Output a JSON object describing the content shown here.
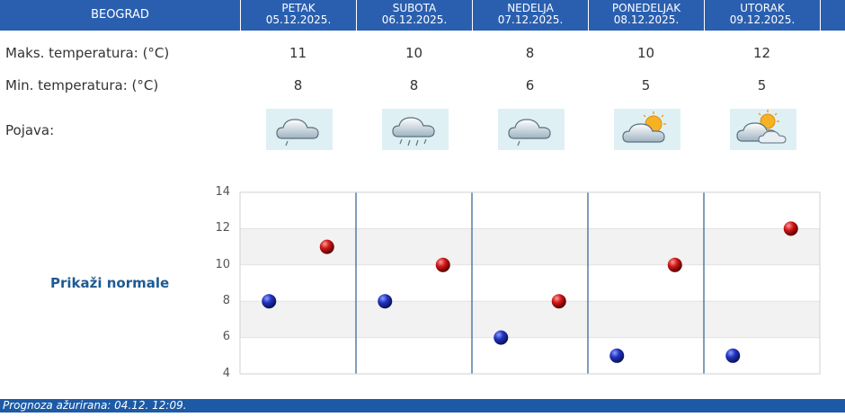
{
  "header": {
    "city": "BEOGRAD",
    "days": [
      {
        "name": "PETAK",
        "date": "05.12.2025."
      },
      {
        "name": "SUBOTA",
        "date": "06.12.2025."
      },
      {
        "name": "NEDELJA",
        "date": "07.12.2025."
      },
      {
        "name": "PONEDELJAK",
        "date": "08.12.2025."
      },
      {
        "name": "UTORAK",
        "date": "09.12.2025."
      }
    ]
  },
  "table": {
    "max_label": "Maks. temperatura: (°C)",
    "min_label": "Min. temperatura: (°C)",
    "phenomenon_label": "Pojava:",
    "max_values": [
      "11",
      "10",
      "8",
      "10",
      "12"
    ],
    "min_values": [
      "8",
      "8",
      "6",
      "5",
      "5"
    ],
    "icons": [
      "cloud-rain-icon",
      "cloud-heavy-rain-icon",
      "cloud-rain-icon",
      "cloud-sun-icon",
      "cloud-sun-icon"
    ]
  },
  "show_normals": "Prikaži normale",
  "chart_data": {
    "type": "scatter",
    "ylim": [
      4,
      14
    ],
    "yticks": [
      "14",
      "12",
      "10",
      "8",
      "6",
      "4"
    ],
    "categories": [
      "05.12.2025.",
      "06.12.2025.",
      "07.12.2025.",
      "08.12.2025.",
      "09.12.2025."
    ],
    "series": [
      {
        "color": "#1c2fb0",
        "values": [
          8,
          8,
          6,
          5,
          5
        ]
      },
      {
        "color": "#d01818",
        "values": [
          11,
          10,
          8,
          10,
          12
        ]
      }
    ]
  },
  "footer": {
    "updated": "Prognoza ažurirana:  04.12. 12:09."
  }
}
